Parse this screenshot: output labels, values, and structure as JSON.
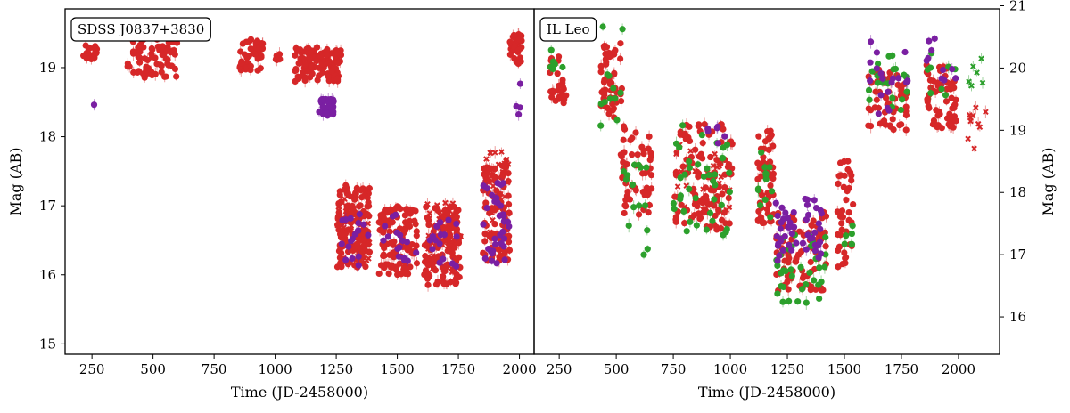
{
  "chart_data": [
    {
      "type": "scatter",
      "panel_label": "SDSS J0837+3830",
      "xlabel": "Time (JD-2458000)",
      "ylabel": "Mag (AB)",
      "ylabel_side": "left",
      "xlim": [
        140,
        2060
      ],
      "ylim": [
        19.85,
        14.85
      ],
      "x_ticks": [
        250,
        500,
        750,
        1000,
        1250,
        1500,
        1750,
        2000
      ],
      "y_ticks": [
        15,
        16,
        17,
        18,
        19
      ],
      "colors": {
        "red": "#d62728",
        "purple": "#7a1fa2",
        "green": "#2ca02c"
      },
      "clusters": [
        {
          "color": "red",
          "marker": "o",
          "x": [
            215,
            270
          ],
          "y": [
            19.1,
            19.35
          ],
          "n": 22
        },
        {
          "color": "purple",
          "marker": "o",
          "x": [
            258,
            262
          ],
          "y": [
            18.44,
            18.5
          ],
          "n": 1
        },
        {
          "color": "red",
          "marker": "o",
          "x": [
            395,
            600
          ],
          "y": [
            18.85,
            19.5
          ],
          "n": 75
        },
        {
          "color": "red",
          "marker": "o",
          "x": [
            855,
            950
          ],
          "y": [
            18.95,
            19.45
          ],
          "n": 45
        },
        {
          "color": "red",
          "marker": "o",
          "x": [
            995,
            1020
          ],
          "y": [
            19.05,
            19.2
          ],
          "n": 5
        },
        {
          "color": "red",
          "marker": "o",
          "x": [
            1080,
            1270
          ],
          "y": [
            18.8,
            19.3
          ],
          "n": 110
        },
        {
          "color": "purple",
          "marker": "o",
          "x": [
            1180,
            1240
          ],
          "y": [
            18.3,
            18.55
          ],
          "n": 35
        },
        {
          "color": "red",
          "marker": "o",
          "x": [
            1255,
            1390
          ],
          "y": [
            16.1,
            17.3
          ],
          "n": 140
        },
        {
          "color": "red",
          "marker": "x",
          "x": [
            1255,
            1390
          ],
          "y": [
            16.2,
            17.2
          ],
          "n": 35
        },
        {
          "color": "purple",
          "marker": "o",
          "x": [
            1255,
            1390
          ],
          "y": [
            16.1,
            16.9
          ],
          "n": 18
        },
        {
          "color": "red",
          "marker": "o",
          "x": [
            1425,
            1580
          ],
          "y": [
            16.0,
            17.0
          ],
          "n": 120
        },
        {
          "color": "purple",
          "marker": "o",
          "x": [
            1440,
            1580
          ],
          "y": [
            16.2,
            16.9
          ],
          "n": 16
        },
        {
          "color": "red",
          "marker": "o",
          "x": [
            1610,
            1760
          ],
          "y": [
            15.85,
            17.0
          ],
          "n": 120
        },
        {
          "color": "red",
          "marker": "x",
          "x": [
            1620,
            1760
          ],
          "y": [
            16.0,
            17.05
          ],
          "n": 40
        },
        {
          "color": "purple",
          "marker": "o",
          "x": [
            1620,
            1760
          ],
          "y": [
            16.1,
            16.8
          ],
          "n": 16
        },
        {
          "color": "red",
          "marker": "o",
          "x": [
            1850,
            1960
          ],
          "y": [
            16.2,
            17.6
          ],
          "n": 100
        },
        {
          "color": "red",
          "marker": "x",
          "x": [
            1850,
            1960
          ],
          "y": [
            16.5,
            17.8
          ],
          "n": 40
        },
        {
          "color": "purple",
          "marker": "o",
          "x": [
            1850,
            1960
          ],
          "y": [
            16.1,
            17.4
          ],
          "n": 35
        },
        {
          "color": "red",
          "marker": "o",
          "x": [
            1960,
            2010
          ],
          "y": [
            19.05,
            19.5
          ],
          "n": 35
        },
        {
          "color": "purple",
          "marker": "o",
          "x": [
            1970,
            2005
          ],
          "y": [
            18.3,
            18.85
          ],
          "n": 4
        }
      ]
    },
    {
      "type": "scatter",
      "panel_label": "IL Leo",
      "xlabel": "Time (JD-2458000)",
      "ylabel": "Mag (AB)",
      "ylabel_side": "right",
      "xlim": [
        140,
        2180
      ],
      "ylim": [
        20.95,
        15.4
      ],
      "x_ticks": [
        250,
        500,
        750,
        1000,
        1250,
        1500,
        1750,
        2000
      ],
      "y_ticks": [
        16,
        17,
        18,
        19,
        20,
        21
      ],
      "colors": {
        "red": "#d62728",
        "purple": "#7a1fa2",
        "green": "#2ca02c"
      },
      "clusters": [
        {
          "color": "red",
          "marker": "o",
          "x": [
            210,
            280
          ],
          "y": [
            19.4,
            20.2
          ],
          "n": 25
        },
        {
          "color": "green",
          "marker": "o",
          "x": [
            210,
            280
          ],
          "y": [
            19.9,
            20.3
          ],
          "n": 6
        },
        {
          "color": "red",
          "marker": "o",
          "x": [
            430,
            530
          ],
          "y": [
            19.2,
            20.4
          ],
          "n": 50
        },
        {
          "color": "green",
          "marker": "o",
          "x": [
            430,
            530
          ],
          "y": [
            19.0,
            20.7
          ],
          "n": 12
        },
        {
          "color": "red",
          "marker": "o",
          "x": [
            520,
            660
          ],
          "y": [
            17.6,
            19.1
          ],
          "n": 55
        },
        {
          "color": "green",
          "marker": "o",
          "x": [
            520,
            660
          ],
          "y": [
            16.9,
            18.5
          ],
          "n": 15
        },
        {
          "color": "red",
          "marker": "o",
          "x": [
            750,
            1010
          ],
          "y": [
            17.4,
            19.1
          ],
          "n": 110
        },
        {
          "color": "red",
          "marker": "x",
          "x": [
            750,
            1010
          ],
          "y": [
            17.6,
            18.8
          ],
          "n": 30
        },
        {
          "color": "green",
          "marker": "o",
          "x": [
            750,
            1010
          ],
          "y": [
            17.3,
            19.2
          ],
          "n": 40
        },
        {
          "color": "purple",
          "marker": "o",
          "x": [
            850,
            1000
          ],
          "y": [
            18.7,
            19.1
          ],
          "n": 6
        },
        {
          "color": "red",
          "marker": "o",
          "x": [
            1120,
            1190
          ],
          "y": [
            17.5,
            19.0
          ],
          "n": 55
        },
        {
          "color": "green",
          "marker": "o",
          "x": [
            1120,
            1190
          ],
          "y": [
            17.3,
            18.7
          ],
          "n": 12
        },
        {
          "color": "red",
          "marker": "o",
          "x": [
            1200,
            1420
          ],
          "y": [
            16.4,
            17.7
          ],
          "n": 90
        },
        {
          "color": "green",
          "marker": "o",
          "x": [
            1200,
            1420
          ],
          "y": [
            16.2,
            17.4
          ],
          "n": 35
        },
        {
          "color": "purple",
          "marker": "o",
          "x": [
            1200,
            1400
          ],
          "y": [
            16.9,
            17.9
          ],
          "n": 50
        },
        {
          "color": "red",
          "marker": "o",
          "x": [
            1470,
            1540
          ],
          "y": [
            16.8,
            18.6
          ],
          "n": 40
        },
        {
          "color": "green",
          "marker": "o",
          "x": [
            1500,
            1540
          ],
          "y": [
            17.0,
            17.5
          ],
          "n": 6
        },
        {
          "color": "red",
          "marker": "o",
          "x": [
            1600,
            1780
          ],
          "y": [
            19.0,
            20.0
          ],
          "n": 55
        },
        {
          "color": "green",
          "marker": "o",
          "x": [
            1600,
            1780
          ],
          "y": [
            19.3,
            20.3
          ],
          "n": 20
        },
        {
          "color": "purple",
          "marker": "o",
          "x": [
            1600,
            1780
          ],
          "y": [
            19.2,
            20.5
          ],
          "n": 18
        },
        {
          "color": "red",
          "marker": "o",
          "x": [
            1860,
            1990
          ],
          "y": [
            19.0,
            20.1
          ],
          "n": 60
        },
        {
          "color": "purple",
          "marker": "o",
          "x": [
            1860,
            1990
          ],
          "y": [
            19.8,
            20.5
          ],
          "n": 10
        },
        {
          "color": "green",
          "marker": "o",
          "x": [
            1860,
            1990
          ],
          "y": [
            19.5,
            20.3
          ],
          "n": 8
        },
        {
          "color": "red",
          "marker": "x",
          "x": [
            2040,
            2120
          ],
          "y": [
            18.5,
            19.4
          ],
          "n": 10
        },
        {
          "color": "green",
          "marker": "x",
          "x": [
            2040,
            2110
          ],
          "y": [
            19.4,
            20.2
          ],
          "n": 6
        }
      ]
    }
  ]
}
